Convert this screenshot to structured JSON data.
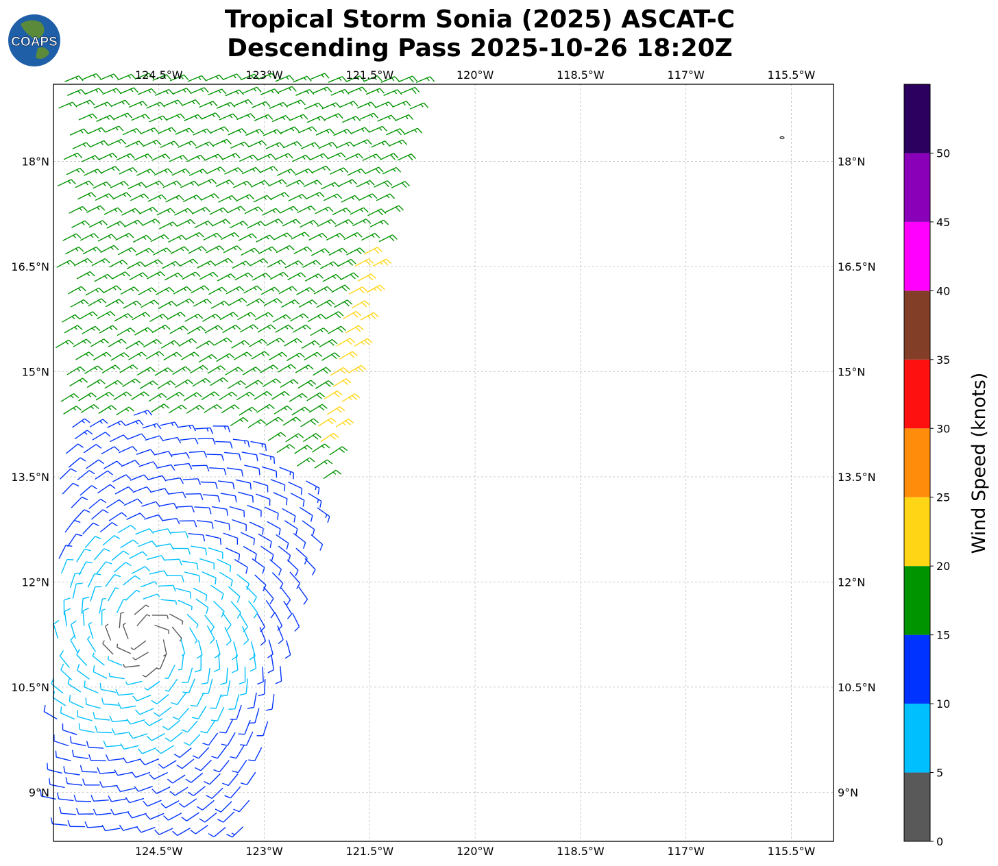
{
  "title": {
    "line1": "Tropical Storm Sonia (2025) ASCAT-C",
    "line2": "Descending Pass 2025-10-26 18:20Z"
  },
  "logo": {
    "text": "COAPS"
  },
  "map": {
    "lon_range": [
      -126.0,
      -114.9
    ],
    "lat_range": [
      8.3,
      19.1
    ],
    "lon_ticks": [
      {
        "value": -124.5,
        "label": "124.5°W"
      },
      {
        "value": -123.0,
        "label": "123°W"
      },
      {
        "value": -121.5,
        "label": "121.5°W"
      },
      {
        "value": -120.0,
        "label": "120°W"
      },
      {
        "value": -118.5,
        "label": "118.5°W"
      },
      {
        "value": -117.0,
        "label": "117°W"
      },
      {
        "value": -115.5,
        "label": "115.5°W"
      }
    ],
    "lat_ticks": [
      {
        "value": 18.0,
        "label": "18°N"
      },
      {
        "value": 16.5,
        "label": "16.5°N"
      },
      {
        "value": 15.0,
        "label": "15°N"
      },
      {
        "value": 13.5,
        "label": "13.5°N"
      },
      {
        "value": 12.0,
        "label": "12°N"
      },
      {
        "value": 10.5,
        "label": "10.5°N"
      },
      {
        "value": 9.0,
        "label": "9°N"
      }
    ],
    "grid": true,
    "swath": {
      "top_east_lon": -120.8,
      "bottom_east_lon": -123.3,
      "west_edge_lon": -126.0
    },
    "storm_center": {
      "lon": -124.7,
      "lat": 11.2
    }
  },
  "colorbar": {
    "label": "Wind Speed (knots)",
    "ticks": [
      "0",
      "5",
      "10",
      "15",
      "20",
      "25",
      "30",
      "35",
      "40",
      "45",
      "50"
    ],
    "bins": [
      {
        "min": 0,
        "max": 5,
        "color": "#595959"
      },
      {
        "min": 5,
        "max": 10,
        "color": "#00bfff"
      },
      {
        "min": 10,
        "max": 15,
        "color": "#0033ff"
      },
      {
        "min": 15,
        "max": 20,
        "color": "#009400"
      },
      {
        "min": 20,
        "max": 25,
        "color": "#ffd515"
      },
      {
        "min": 25,
        "max": 30,
        "color": "#ff8c0a"
      },
      {
        "min": 30,
        "max": 35,
        "color": "#ff1010"
      },
      {
        "min": 35,
        "max": 40,
        "color": "#823e26"
      },
      {
        "min": 40,
        "max": 45,
        "color": "#ff00ff"
      },
      {
        "min": 45,
        "max": 50,
        "color": "#8a00b8"
      },
      {
        "min": 50,
        "max": 55,
        "color": "#2b005e"
      }
    ]
  }
}
